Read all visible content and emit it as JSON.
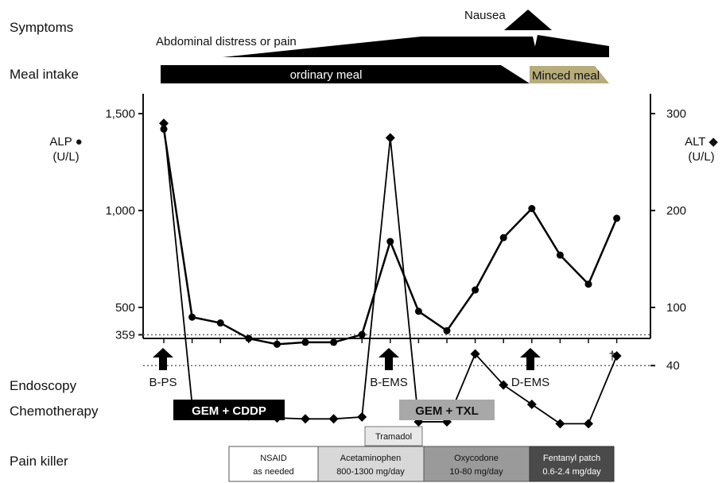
{
  "rows": {
    "symptoms": "Symptoms",
    "meal": "Meal intake",
    "endoscopy": "Endoscopy",
    "chemo": "Chemotherapy",
    "pain": "Pain killer"
  },
  "symptoms": {
    "abdominal": "Abdominal distress or pain",
    "nausea": "Nausea"
  },
  "meal": {
    "ordinary": "ordinary meal",
    "minced": "Minced meal"
  },
  "endoscopy": [
    "B-PS",
    "B-EMS",
    "D-EMS"
  ],
  "death_marker": "†",
  "chemotherapy": [
    "GEM + CDDP",
    "GEM + TXL"
  ],
  "pain_killer": {
    "tramadol": "Tramadol",
    "nsaid": [
      "NSAID",
      "as needed"
    ],
    "acetaminophen": [
      "Acetaminophen",
      "800-1300 mg/day"
    ],
    "oxycodone": [
      "Oxycodone",
      "10-80 mg/day"
    ],
    "fentanyl": [
      "Fentanyl patch",
      "0.6-2.4 mg/day"
    ]
  },
  "colors": {
    "minced": "#b7ad7b",
    "tramadol": "#e8e8e8",
    "acetaminophen": "#d8d8d8",
    "oxycodone": "#9a9a9a",
    "fentanyl": "#4a4a4a",
    "txl": "#a8a8a8"
  },
  "chart_data": {
    "type": "line",
    "x": [
      1,
      2,
      3,
      4,
      5,
      6,
      7,
      8,
      9,
      10,
      11,
      12,
      13,
      14,
      15,
      16,
      17
    ],
    "left_axis": {
      "label": [
        "ALP ●",
        "(U/L)"
      ],
      "ticks": [
        "1,500",
        "1,000",
        "500",
        "359"
      ],
      "tick_values": [
        1500,
        1000,
        500,
        359
      ]
    },
    "right_axis": {
      "label": [
        "ALT ◆",
        "(U/L)"
      ],
      "ticks": [
        "300",
        "200",
        "100",
        "40"
      ],
      "tick_values": [
        300,
        200,
        100,
        40
      ]
    },
    "reference_lines": [
      {
        "axis": "left",
        "value": 359
      },
      {
        "axis": "right",
        "value": 40
      }
    ],
    "series": [
      {
        "name": "ALP",
        "axis": "left",
        "marker": "circle",
        "values": [
          1420,
          450,
          420,
          340,
          310,
          320,
          320,
          360,
          840,
          480,
          380,
          590,
          860,
          1010,
          770,
          620,
          960
        ]
      },
      {
        "name": "ALT",
        "axis": "right",
        "marker": "diamond",
        "values": [
          290,
          0,
          -6,
          -12,
          -14,
          -15,
          -15,
          -13,
          275,
          -18,
          -18,
          52,
          20,
          0,
          -20,
          -20,
          50
        ]
      }
    ]
  }
}
